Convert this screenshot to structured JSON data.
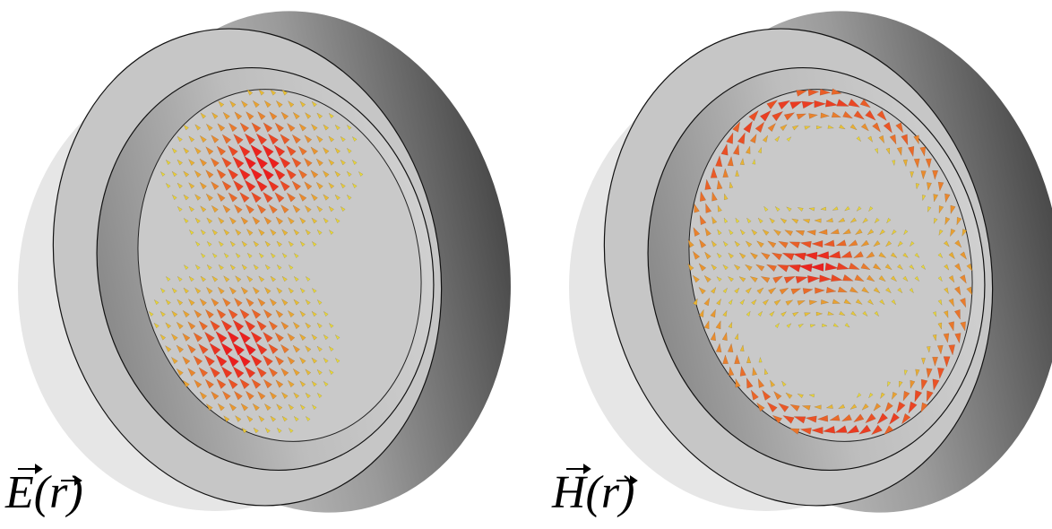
{
  "panels": [
    {
      "label": "E(r)"
    },
    {
      "label": "H(r)"
    }
  ]
}
